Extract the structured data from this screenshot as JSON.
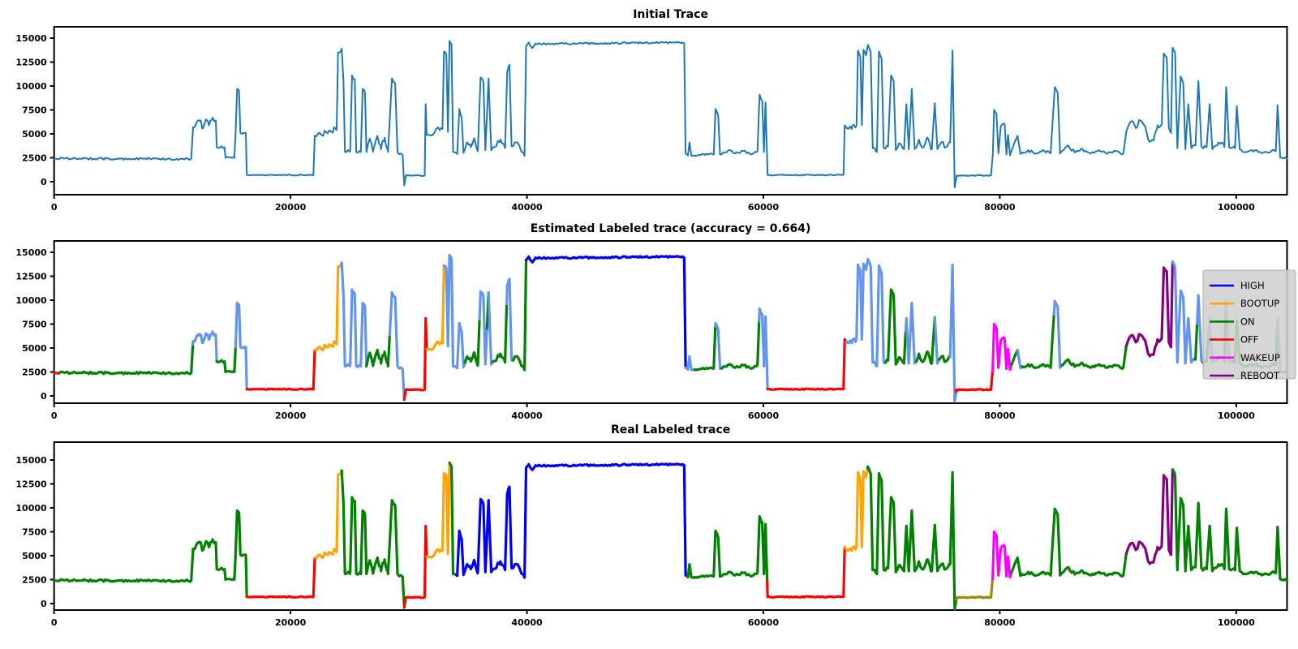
{
  "figure": {
    "background": "#ffffff"
  },
  "palette": {
    "steelblue": "#1f77b4",
    "blue": "#0000f0",
    "lightblue": "#6495ed",
    "green": "#008000",
    "red": "#ff0000",
    "orange": "#ffa500",
    "magenta": "#ff00ff",
    "purple": "#800080",
    "olive": "#998a00",
    "frame": "#000000",
    "legend_bg": "rgba(208,208,208,0.88)",
    "legend_border": "#b0b0b0"
  },
  "chart_data": {
    "type": "line",
    "x_ticks": [
      0,
      20000,
      40000,
      60000,
      80000,
      100000
    ],
    "y_ticks": [
      0,
      2500,
      5000,
      7500,
      10000,
      12500,
      15000
    ],
    "x_range": [
      0,
      104300
    ],
    "y_range": [
      0,
      15000
    ],
    "grid": false,
    "plots": [
      {
        "title": "Initial Trace",
        "mode": "single",
        "color_key": "steelblue"
      },
      {
        "title": "Estimated Labeled trace (accuracy = 0.664)",
        "mode": "segmented",
        "accuracy": 0.664,
        "legend_position": "right",
        "legend": [
          {
            "label": "HIGH",
            "color_key": "blue"
          },
          {
            "label": "BOOTUP",
            "color_key": "orange"
          },
          {
            "label": "ON",
            "color_key": "green"
          },
          {
            "label": "OFF",
            "color_key": "red"
          },
          {
            "label": "WAKEUP",
            "color_key": "magenta"
          },
          {
            "label": "REBOOT",
            "color_key": "purple"
          }
        ],
        "segments": [
          [
            "red",
            0,
            300
          ],
          [
            "green",
            300,
            11650
          ],
          [
            "lightblue",
            11650,
            13720
          ],
          [
            "green",
            13720,
            15280
          ],
          [
            "lightblue",
            15280,
            16260
          ],
          [
            "red",
            16260,
            21960
          ],
          [
            "orange",
            21960,
            24280
          ],
          [
            "lightblue",
            24280,
            26400
          ],
          [
            "green",
            26400,
            28300
          ],
          [
            "lightblue",
            28300,
            29560
          ],
          [
            "red",
            29560,
            31480
          ],
          [
            "orange",
            31480,
            32930
          ],
          [
            "lightblue",
            32930,
            34750
          ],
          [
            "green",
            34750,
            35950
          ],
          [
            "lightblue",
            35950,
            36560
          ],
          [
            "green",
            36560,
            36680
          ],
          [
            "lightblue",
            36680,
            37060
          ],
          [
            "green",
            37060,
            38230
          ],
          [
            "lightblue",
            38230,
            38780
          ],
          [
            "green",
            38780,
            39860
          ],
          [
            "blue",
            39860,
            53370
          ],
          [
            "lightblue",
            53370,
            54050
          ],
          [
            "green",
            54050,
            55850
          ],
          [
            "lightblue",
            55850,
            56400
          ],
          [
            "green",
            56400,
            59560
          ],
          [
            "lightblue",
            59560,
            60340
          ],
          [
            "red",
            60340,
            66930
          ],
          [
            "lightblue",
            66930,
            70230
          ],
          [
            "green",
            70230,
            71950
          ],
          [
            "lightblue",
            71950,
            72900
          ],
          [
            "green",
            72900,
            74420
          ],
          [
            "lightblue",
            74420,
            74850
          ],
          [
            "green",
            74850,
            75750
          ],
          [
            "lightblue",
            75750,
            76240
          ],
          [
            "red",
            76240,
            79330
          ],
          [
            "magenta",
            79330,
            80900
          ],
          [
            "green",
            80900,
            81420
          ],
          [
            "lightblue",
            81420,
            81800
          ],
          [
            "green",
            81800,
            84550
          ],
          [
            "lightblue",
            84550,
            85200
          ],
          [
            "green",
            85200,
            90650
          ],
          [
            "purple",
            90650,
            94500
          ],
          [
            "lightblue",
            94500,
            96350
          ],
          [
            "green",
            96350,
            96600
          ],
          [
            "lightblue",
            96600,
            97100
          ],
          [
            "green",
            97100,
            97600
          ],
          [
            "lightblue",
            97600,
            98150
          ],
          [
            "green",
            98150,
            99050
          ],
          [
            "lightblue",
            99050,
            99550
          ],
          [
            "green",
            99550,
            103380
          ],
          [
            "lightblue",
            103380,
            103680
          ],
          [
            "green",
            103680,
            104300
          ]
        ]
      },
      {
        "title": "Real Labeled trace",
        "mode": "segmented",
        "segments": [
          [
            "green",
            0,
            16260
          ],
          [
            "red",
            16260,
            21960
          ],
          [
            "orange",
            21960,
            24280
          ],
          [
            "green",
            24280,
            29560
          ],
          [
            "red",
            29560,
            31500
          ],
          [
            "orange",
            31500,
            33370
          ],
          [
            "green",
            33370,
            33900
          ],
          [
            "blue",
            33900,
            53430
          ],
          [
            "green",
            53430,
            60300
          ],
          [
            "red",
            60300,
            66820
          ],
          [
            "orange",
            66820,
            68780
          ],
          [
            "green",
            68780,
            76280
          ],
          [
            "olive",
            76280,
            79330
          ],
          [
            "magenta",
            79330,
            80950
          ],
          [
            "green",
            80950,
            90650
          ],
          [
            "purple",
            90650,
            94500
          ],
          [
            "green",
            94500,
            104300
          ]
        ]
      }
    ],
    "trace_keypoints": [
      [
        0,
        2400,
        120
      ],
      [
        11600,
        2400,
        120
      ],
      [
        11750,
        5700,
        300
      ],
      [
        12100,
        6300,
        300
      ],
      [
        12400,
        6400,
        300
      ],
      [
        12600,
        5600,
        200
      ],
      [
        12850,
        6500,
        250
      ],
      [
        13100,
        5900,
        250
      ],
      [
        13400,
        6700,
        250
      ],
      [
        13680,
        6400,
        0
      ],
      [
        13760,
        3600,
        120
      ],
      [
        14420,
        3600,
        0
      ],
      [
        14500,
        2500,
        100
      ],
      [
        15250,
        2500,
        0
      ],
      [
        15350,
        5100,
        0
      ],
      [
        15480,
        9700,
        150
      ],
      [
        15650,
        9400,
        0
      ],
      [
        15760,
        5100,
        150
      ],
      [
        16220,
        5100,
        0
      ],
      [
        16300,
        700,
        50
      ],
      [
        21930,
        700,
        0
      ],
      [
        22050,
        4800,
        350
      ],
      [
        23000,
        5200,
        350
      ],
      [
        23900,
        5400,
        0
      ],
      [
        24020,
        13500,
        150
      ],
      [
        24230,
        13600,
        0
      ],
      [
        24330,
        13900,
        150
      ],
      [
        24480,
        10500,
        0
      ],
      [
        24600,
        3100,
        200
      ],
      [
        25050,
        3300,
        0
      ],
      [
        25200,
        11100,
        150
      ],
      [
        25430,
        10700,
        0
      ],
      [
        25560,
        3100,
        150
      ],
      [
        25950,
        3100,
        0
      ],
      [
        26100,
        9700,
        150
      ],
      [
        26300,
        9300,
        0
      ],
      [
        26420,
        3100,
        150
      ],
      [
        26700,
        4500,
        350
      ],
      [
        27000,
        3300,
        350
      ],
      [
        27350,
        4800,
        350
      ],
      [
        27650,
        3400,
        350
      ],
      [
        27950,
        4600,
        350
      ],
      [
        28250,
        3100,
        150
      ],
      [
        28580,
        10800,
        150
      ],
      [
        28850,
        10300,
        0
      ],
      [
        29050,
        3100,
        150
      ],
      [
        29480,
        2800,
        0
      ],
      [
        29620,
        -400,
        0
      ],
      [
        29750,
        650,
        50
      ],
      [
        31350,
        650,
        0
      ],
      [
        31430,
        8100,
        0
      ],
      [
        31520,
        4900,
        350
      ],
      [
        32200,
        5200,
        350
      ],
      [
        32850,
        5500,
        0
      ],
      [
        32980,
        13600,
        150
      ],
      [
        33180,
        13300,
        0
      ],
      [
        33320,
        5200,
        0
      ],
      [
        33450,
        14700,
        150
      ],
      [
        33620,
        14200,
        0
      ],
      [
        33750,
        3100,
        150
      ],
      [
        34100,
        2900,
        0
      ],
      [
        34280,
        7600,
        150
      ],
      [
        34480,
        6700,
        0
      ],
      [
        34630,
        3000,
        200
      ],
      [
        34950,
        4100,
        400
      ],
      [
        35250,
        3600,
        400
      ],
      [
        35550,
        4500,
        400
      ],
      [
        35850,
        3400,
        200
      ],
      [
        36080,
        10900,
        150
      ],
      [
        36320,
        10400,
        0
      ],
      [
        36480,
        3300,
        150
      ],
      [
        36750,
        10800,
        150
      ],
      [
        36980,
        3300,
        200
      ],
      [
        37400,
        3700,
        400
      ],
      [
        37750,
        4400,
        400
      ],
      [
        38150,
        3500,
        150
      ],
      [
        38330,
        11500,
        150
      ],
      [
        38520,
        12200,
        0
      ],
      [
        38700,
        3700,
        200
      ],
      [
        39050,
        4100,
        300
      ],
      [
        39400,
        3600,
        200
      ],
      [
        39800,
        2700,
        0
      ],
      [
        39930,
        14200,
        100
      ],
      [
        40150,
        14550,
        90
      ],
      [
        40450,
        13950,
        90
      ],
      [
        40750,
        14400,
        90
      ],
      [
        53150,
        14550,
        0
      ],
      [
        53300,
        14450,
        0
      ],
      [
        53420,
        2950,
        100
      ],
      [
        53620,
        2750,
        0
      ],
      [
        53750,
        4100,
        0
      ],
      [
        53900,
        2750,
        120
      ],
      [
        55800,
        2850,
        0
      ],
      [
        55950,
        7600,
        150
      ],
      [
        56180,
        6900,
        0
      ],
      [
        56330,
        2850,
        120
      ],
      [
        57200,
        3300,
        200
      ],
      [
        57600,
        2950,
        120
      ],
      [
        58300,
        3200,
        120
      ],
      [
        59000,
        2850,
        120
      ],
      [
        59500,
        3200,
        0
      ],
      [
        59680,
        9100,
        150
      ],
      [
        59900,
        8500,
        0
      ],
      [
        60050,
        3100,
        0
      ],
      [
        60180,
        8300,
        0
      ],
      [
        60360,
        700,
        50
      ],
      [
        66780,
        700,
        0
      ],
      [
        66880,
        5900,
        0
      ],
      [
        67050,
        5600,
        300
      ],
      [
        67500,
        5800,
        300
      ],
      [
        67880,
        5900,
        0
      ],
      [
        68000,
        13700,
        150
      ],
      [
        68200,
        13100,
        0
      ],
      [
        68330,
        5900,
        0
      ],
      [
        68470,
        13800,
        150
      ],
      [
        68680,
        13200,
        0
      ],
      [
        68850,
        14300,
        150
      ],
      [
        69080,
        13500,
        0
      ],
      [
        69250,
        3500,
        200
      ],
      [
        69600,
        3100,
        0
      ],
      [
        69780,
        13600,
        150
      ],
      [
        70000,
        12900,
        0
      ],
      [
        70180,
        3500,
        200
      ],
      [
        70550,
        3700,
        300
      ],
      [
        70800,
        11100,
        150
      ],
      [
        71020,
        10500,
        0
      ],
      [
        71200,
        3300,
        250
      ],
      [
        71550,
        4000,
        300
      ],
      [
        71900,
        3400,
        150
      ],
      [
        72100,
        8100,
        0
      ],
      [
        72300,
        3400,
        150
      ],
      [
        72550,
        9700,
        0
      ],
      [
        72800,
        3400,
        250
      ],
      [
        73150,
        4400,
        300
      ],
      [
        73550,
        3600,
        300
      ],
      [
        73900,
        4600,
        300
      ],
      [
        74250,
        3400,
        150
      ],
      [
        74500,
        8200,
        0
      ],
      [
        74720,
        3400,
        250
      ],
      [
        75050,
        4100,
        300
      ],
      [
        75450,
        3600,
        250
      ],
      [
        75800,
        4100,
        0
      ],
      [
        76000,
        13700,
        150
      ],
      [
        76180,
        -600,
        0
      ],
      [
        76350,
        650,
        50
      ],
      [
        79250,
        650,
        0
      ],
      [
        79400,
        2700,
        0
      ],
      [
        79520,
        7500,
        150
      ],
      [
        79720,
        7100,
        0
      ],
      [
        79880,
        2950,
        0
      ],
      [
        80080,
        5800,
        250
      ],
      [
        80420,
        5900,
        0
      ],
      [
        80560,
        2850,
        0
      ],
      [
        80700,
        4900,
        0
      ],
      [
        80860,
        2750,
        120
      ],
      [
        81250,
        4100,
        0
      ],
      [
        81500,
        4800,
        0
      ],
      [
        81750,
        2900,
        120
      ],
      [
        82400,
        3300,
        180
      ],
      [
        83000,
        2950,
        120
      ],
      [
        83600,
        3300,
        180
      ],
      [
        84300,
        2950,
        0
      ],
      [
        84650,
        9900,
        150
      ],
      [
        84900,
        9300,
        0
      ],
      [
        85100,
        2950,
        120
      ],
      [
        85800,
        3800,
        200
      ],
      [
        86350,
        3050,
        120
      ],
      [
        87000,
        3400,
        180
      ],
      [
        87700,
        2950,
        120
      ],
      [
        88400,
        3300,
        150
      ],
      [
        89100,
        2950,
        120
      ],
      [
        89800,
        3200,
        150
      ],
      [
        90450,
        2950,
        0
      ],
      [
        90700,
        5200,
        350
      ],
      [
        91100,
        6300,
        350
      ],
      [
        91500,
        5600,
        350
      ],
      [
        91900,
        6400,
        300
      ],
      [
        92300,
        5800,
        0
      ],
      [
        92550,
        4400,
        250
      ],
      [
        93000,
        4300,
        250
      ],
      [
        93350,
        5900,
        300
      ],
      [
        93700,
        6000,
        0
      ],
      [
        93870,
        13400,
        150
      ],
      [
        94120,
        13000,
        0
      ],
      [
        94300,
        5600,
        0
      ],
      [
        94480,
        5100,
        0
      ],
      [
        94620,
        14000,
        150
      ],
      [
        94830,
        13400,
        0
      ],
      [
        95020,
        3500,
        150
      ],
      [
        95300,
        11000,
        150
      ],
      [
        95520,
        10300,
        0
      ],
      [
        95700,
        3400,
        150
      ],
      [
        95950,
        8100,
        0
      ],
      [
        96200,
        3500,
        200
      ],
      [
        96550,
        3800,
        0
      ],
      [
        96800,
        10500,
        150
      ],
      [
        97050,
        3700,
        200
      ],
      [
        97500,
        3600,
        0
      ],
      [
        97750,
        8100,
        0
      ],
      [
        97980,
        3400,
        200
      ],
      [
        98500,
        4100,
        300
      ],
      [
        99000,
        3600,
        0
      ],
      [
        99150,
        9900,
        150
      ],
      [
        99400,
        3600,
        200
      ],
      [
        99900,
        3500,
        0
      ],
      [
        100050,
        7900,
        0
      ],
      [
        100300,
        3400,
        200
      ],
      [
        100900,
        3100,
        150
      ],
      [
        101600,
        3300,
        180
      ],
      [
        102300,
        3050,
        150
      ],
      [
        103000,
        3250,
        150
      ],
      [
        103350,
        3200,
        0
      ],
      [
        103500,
        8000,
        0
      ],
      [
        103720,
        2550,
        120
      ],
      [
        104300,
        2400,
        0
      ]
    ]
  }
}
